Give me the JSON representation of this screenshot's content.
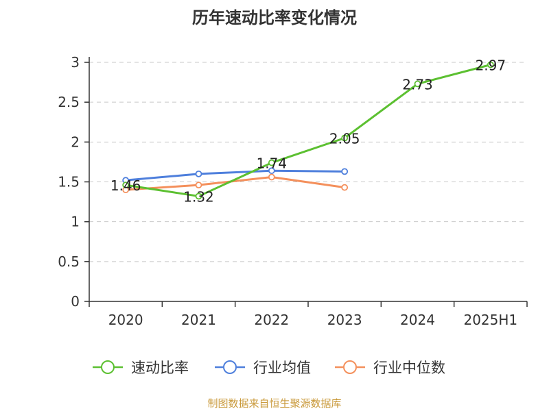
{
  "source_note": "制图数据来自恒生聚源数据库",
  "chart_data": {
    "type": "line",
    "title": "历年速动比率变化情况",
    "categories": [
      "2020",
      "2021",
      "2022",
      "2023",
      "2024",
      "2025H1"
    ],
    "ylim": [
      0,
      3
    ],
    "yticks": [
      "0",
      "0.5",
      "1",
      "1.5",
      "2",
      "2.5",
      "3"
    ],
    "grid": true,
    "legend_position": "bottom",
    "series": [
      {
        "name": "速动比率",
        "color": "#5cc031",
        "values": [
          1.46,
          1.32,
          1.74,
          2.05,
          2.73,
          2.97
        ],
        "labels": [
          "1.46",
          "1.32",
          "1.74",
          "2.05",
          "2.73",
          "2.97"
        ]
      },
      {
        "name": "行业均值",
        "color": "#4e7fdc",
        "values": [
          1.52,
          1.6,
          1.64,
          1.63,
          null,
          null
        ]
      },
      {
        "name": "行业中位数",
        "color": "#f4905c",
        "values": [
          1.4,
          1.46,
          1.56,
          1.43,
          null,
          null
        ]
      }
    ]
  }
}
